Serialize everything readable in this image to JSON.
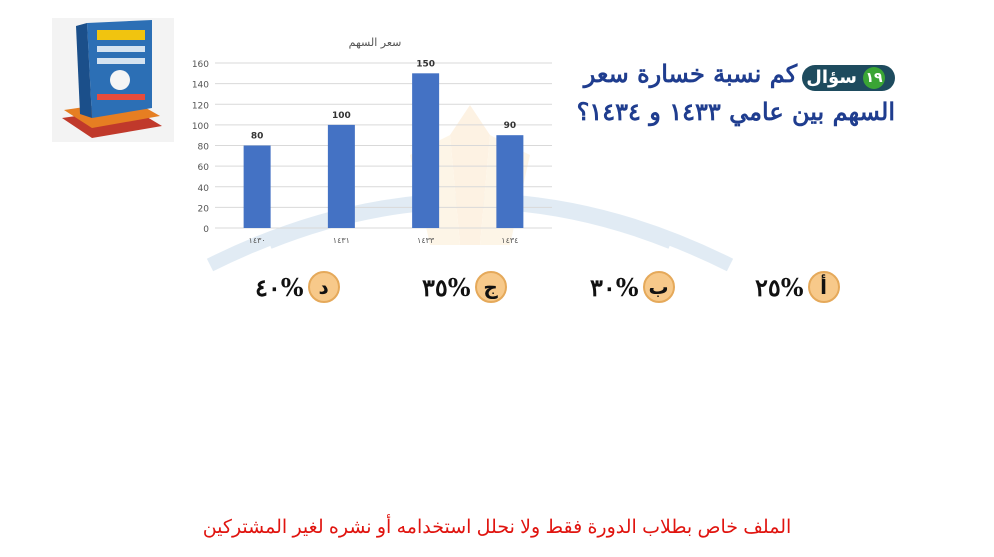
{
  "question": {
    "badge_label": "سؤال",
    "badge_number": "١٩",
    "text": "كم نسبة خسارة سعر السهم بين عامي ١٤٣٣ و ١٤٣٤؟"
  },
  "options": [
    {
      "letter": "أ",
      "value": "%٢٥"
    },
    {
      "letter": "ب",
      "value": "%٣٠"
    },
    {
      "letter": "ج",
      "value": "%٣٥"
    },
    {
      "letter": "د",
      "value": "%٤٠"
    }
  ],
  "footer": "الملف خاص بطلاب الدورة فقط ولا نحلل استخدامه أو نشره لغير المشتركين",
  "colors": {
    "bar": "#4472c4",
    "grid": "#d9d9d9",
    "footer": "#e0140f",
    "question": "#1f3d8f"
  },
  "book_icon": "book-cover-icon",
  "chart_data": {
    "type": "bar",
    "title": "سعر السهم",
    "categories": [
      "١٤٣٠",
      "١٤٣١",
      "١٤٣٣",
      "١٤٣٤"
    ],
    "values": [
      80,
      100,
      150,
      90
    ],
    "data_labels": [
      "80",
      "100",
      "150",
      "90"
    ],
    "yticks": [
      "0",
      "20",
      "40",
      "60",
      "80",
      "100",
      "120",
      "140",
      "160"
    ],
    "ylim": [
      0,
      160
    ],
    "grid": true,
    "xlabel": "",
    "ylabel": ""
  }
}
